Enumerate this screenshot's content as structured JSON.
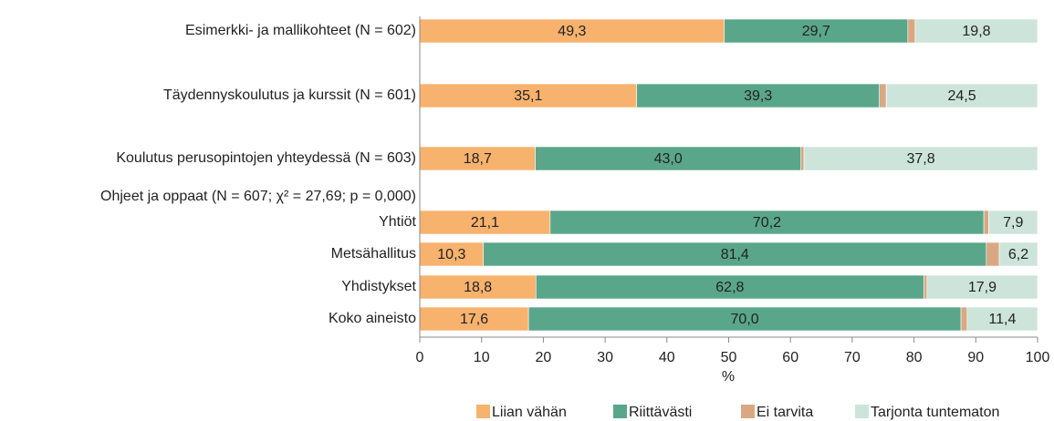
{
  "chart_data": {
    "type": "stacked_bar_horizontal",
    "categories": [
      "Esimerkki- ja mallikohteet (N = 602)",
      "Täydennyskoulutus ja kurssit (N = 601)",
      "Koulutus perusopintojen yhteydessä (N = 603)",
      "Ohjeet ja oppaat (N = 607; χ² = 27,69; p = 0,000)",
      "Yhtiöt",
      "Metsähallitus",
      "Yhdistykset",
      "Koko aineisto"
    ],
    "series": [
      {
        "name": "Liian vähän",
        "color": "#f7b26e",
        "values": [
          49.3,
          35.1,
          18.7,
          null,
          21.1,
          10.3,
          18.8,
          17.6
        ],
        "value_labels": [
          "49,3",
          "35,1",
          "18,7",
          null,
          "21,1",
          "10,3",
          "18,8",
          "17,6"
        ]
      },
      {
        "name": "Riittävästi",
        "color": "#5aa68a",
        "values": [
          29.7,
          39.3,
          43.0,
          null,
          70.2,
          81.4,
          62.8,
          70.0
        ],
        "value_labels": [
          "29,7",
          "39,3",
          "43,0",
          null,
          "70,2",
          "81,4",
          "62,8",
          "70,0"
        ]
      },
      {
        "name": "Ei tarvita",
        "color": "#d9a882",
        "values": [
          1.2,
          1.1,
          0.5,
          null,
          0.8,
          2.1,
          0.5,
          1.0
        ]
      },
      {
        "name": "Tarjonta tuntematon",
        "color": "#cde4da",
        "values": [
          19.8,
          24.5,
          37.8,
          null,
          7.9,
          6.2,
          17.9,
          11.4
        ],
        "value_labels": [
          "19,8",
          "24,5",
          "37,8",
          null,
          "7,9",
          "6,2",
          "17,9",
          "11,4"
        ]
      }
    ],
    "xlabel": "%",
    "xlim": [
      0,
      100
    ],
    "xticks": [
      0,
      10,
      20,
      30,
      40,
      50,
      60,
      70,
      80,
      90,
      100
    ],
    "legend": "bottom"
  }
}
